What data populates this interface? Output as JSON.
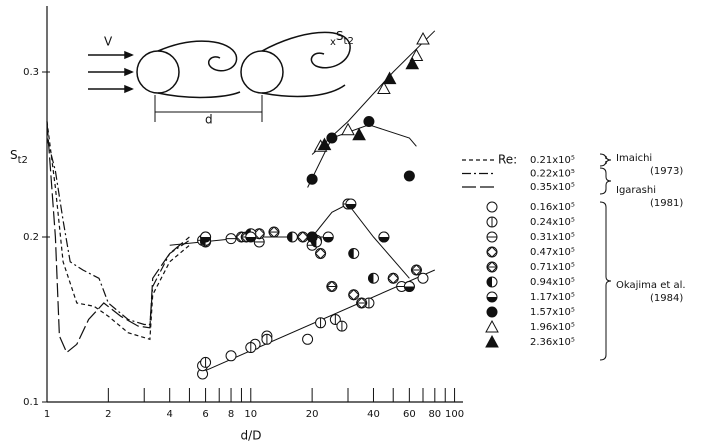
{
  "chart_data": {
    "type": "scatter",
    "x_label": "d/D",
    "y_label": {
      "symbol": "S",
      "subscript": "t2"
    },
    "log_x": true,
    "color": "#111",
    "xlim": [
      1,
      110
    ],
    "ylim": [
      0.1,
      0.34
    ],
    "xticks": [
      1,
      2,
      4,
      6,
      8,
      10,
      20,
      40,
      60,
      80,
      100
    ],
    "xminor_ticks": [
      3,
      5,
      7,
      9,
      30,
      50,
      70,
      90
    ],
    "yticks": [
      0.1,
      0.2,
      0.3
    ],
    "legend_title": "Re:",
    "series": [
      {
        "name": "0.21x10⁵",
        "line": "dash",
        "x": [
          1,
          1.1,
          1.2,
          1.4,
          1.7,
          2,
          2.5,
          3.2,
          3.3,
          4,
          5
        ],
        "values": [
          0.27,
          0.23,
          0.185,
          0.16,
          0.158,
          0.152,
          0.142,
          0.138,
          0.165,
          0.185,
          0.195
        ]
      },
      {
        "name": "0.22x10⁵",
        "line": "dashdot",
        "x": [
          1,
          1.1,
          1.2,
          1.3,
          1.5,
          1.8,
          2,
          2.5,
          3,
          3.2,
          3.3,
          4,
          5
        ],
        "values": [
          0.26,
          0.24,
          0.21,
          0.185,
          0.18,
          0.175,
          0.16,
          0.15,
          0.147,
          0.147,
          0.17,
          0.19,
          0.198
        ]
      },
      {
        "name": "0.35x10⁵",
        "line": "longdash",
        "x": [
          1,
          1.1,
          1.15,
          1.25,
          1.4,
          1.6,
          1.9,
          2.3,
          2.8,
          3.2,
          3.3,
          4,
          5
        ],
        "values": [
          0.27,
          0.2,
          0.14,
          0.13,
          0.135,
          0.15,
          0.16,
          0.152,
          0.146,
          0.145,
          0.175,
          0.19,
          0.2
        ]
      },
      {
        "name": "0.16x10⁵",
        "marker": "open",
        "x": [
          5.8,
          5.8,
          8,
          10.5,
          12,
          19,
          30,
          70
        ],
        "values": [
          0.117,
          0.122,
          0.128,
          0.135,
          0.14,
          0.138,
          0.22,
          0.175
        ]
      },
      {
        "name": "0.24x10⁵",
        "marker": "vbar",
        "x": [
          6,
          10,
          12,
          22,
          26,
          28,
          38,
          60
        ],
        "values": [
          0.124,
          0.133,
          0.138,
          0.148,
          0.15,
          0.146,
          0.16,
          0.17
        ]
      },
      {
        "name": "0.31x10⁵",
        "marker": "hbar",
        "x": [
          5.8,
          8,
          11,
          20,
          30,
          45,
          55
        ],
        "values": [
          0.198,
          0.199,
          0.197,
          0.195,
          0.22,
          0.2,
          0.17
        ]
      },
      {
        "name": "0.47x10⁵",
        "marker": "diamond",
        "x": [
          6,
          9,
          11,
          18,
          22,
          32,
          50
        ],
        "values": [
          0.2,
          0.2,
          0.202,
          0.2,
          0.19,
          0.165,
          0.175
        ]
      },
      {
        "name": "0.71x10⁵",
        "marker": "diamond-bar",
        "x": [
          6,
          9.5,
          13,
          21,
          25,
          35,
          65
        ],
        "values": [
          0.197,
          0.2,
          0.203,
          0.198,
          0.17,
          0.16,
          0.18
        ]
      },
      {
        "name": "0.94x10⁵",
        "marker": "half-left",
        "x": [
          6,
          10,
          16,
          21,
          32,
          40
        ],
        "values": [
          0.198,
          0.202,
          0.2,
          0.197,
          0.19,
          0.175
        ]
      },
      {
        "name": "1.17x10⁵",
        "marker": "half-bottom",
        "x": [
          6,
          10,
          20,
          24,
          31,
          45,
          60
        ],
        "values": [
          0.2,
          0.2,
          0.2,
          0.2,
          0.22,
          0.2,
          0.17
        ]
      },
      {
        "name": "1.57x10⁵",
        "marker": "filled",
        "x": [
          20,
          20,
          25,
          38,
          60
        ],
        "values": [
          0.2,
          0.235,
          0.26,
          0.27,
          0.237
        ]
      },
      {
        "name": "1.96x10⁵",
        "marker": "triangle-open",
        "x": [
          22,
          30,
          45,
          65,
          70
        ],
        "values": [
          0.255,
          0.265,
          0.29,
          0.31,
          0.32
        ]
      },
      {
        "name": "2.36x10⁵",
        "marker": "triangle-filled",
        "x": [
          23,
          34,
          48,
          62
        ],
        "values": [
          0.256,
          0.262,
          0.296,
          0.305
        ]
      }
    ],
    "curves": [
      {
        "x": [
          5.5,
          80
        ],
        "values": [
          0.117,
          0.18
        ]
      },
      {
        "x": [
          4,
          10,
          25
        ],
        "values": [
          0.195,
          0.2,
          0.2
        ]
      },
      {
        "x": [
          19,
          25,
          38,
          60,
          65
        ],
        "values": [
          0.23,
          0.26,
          0.268,
          0.26,
          0.255
        ]
      },
      {
        "x": [
          20,
          30,
          50,
          80
        ],
        "values": [
          0.25,
          0.27,
          0.3,
          0.325
        ]
      },
      {
        "x": [
          20,
          25,
          30,
          40,
          60
        ],
        "values": [
          0.2,
          0.215,
          0.22,
          0.2,
          0.175
        ]
      }
    ],
    "sources": [
      {
        "author": "Imaichi",
        "year": "(1973)"
      },
      {
        "author": "Igarashi",
        "year": "(1981)"
      },
      {
        "author": "Okajima et al.",
        "year": "(1984)"
      }
    ],
    "inset": {
      "flow_label": "V",
      "spacing_label": "d",
      "wake_prefix": "x",
      "wake_symbol": "S",
      "wake_subscript": "t2"
    }
  }
}
